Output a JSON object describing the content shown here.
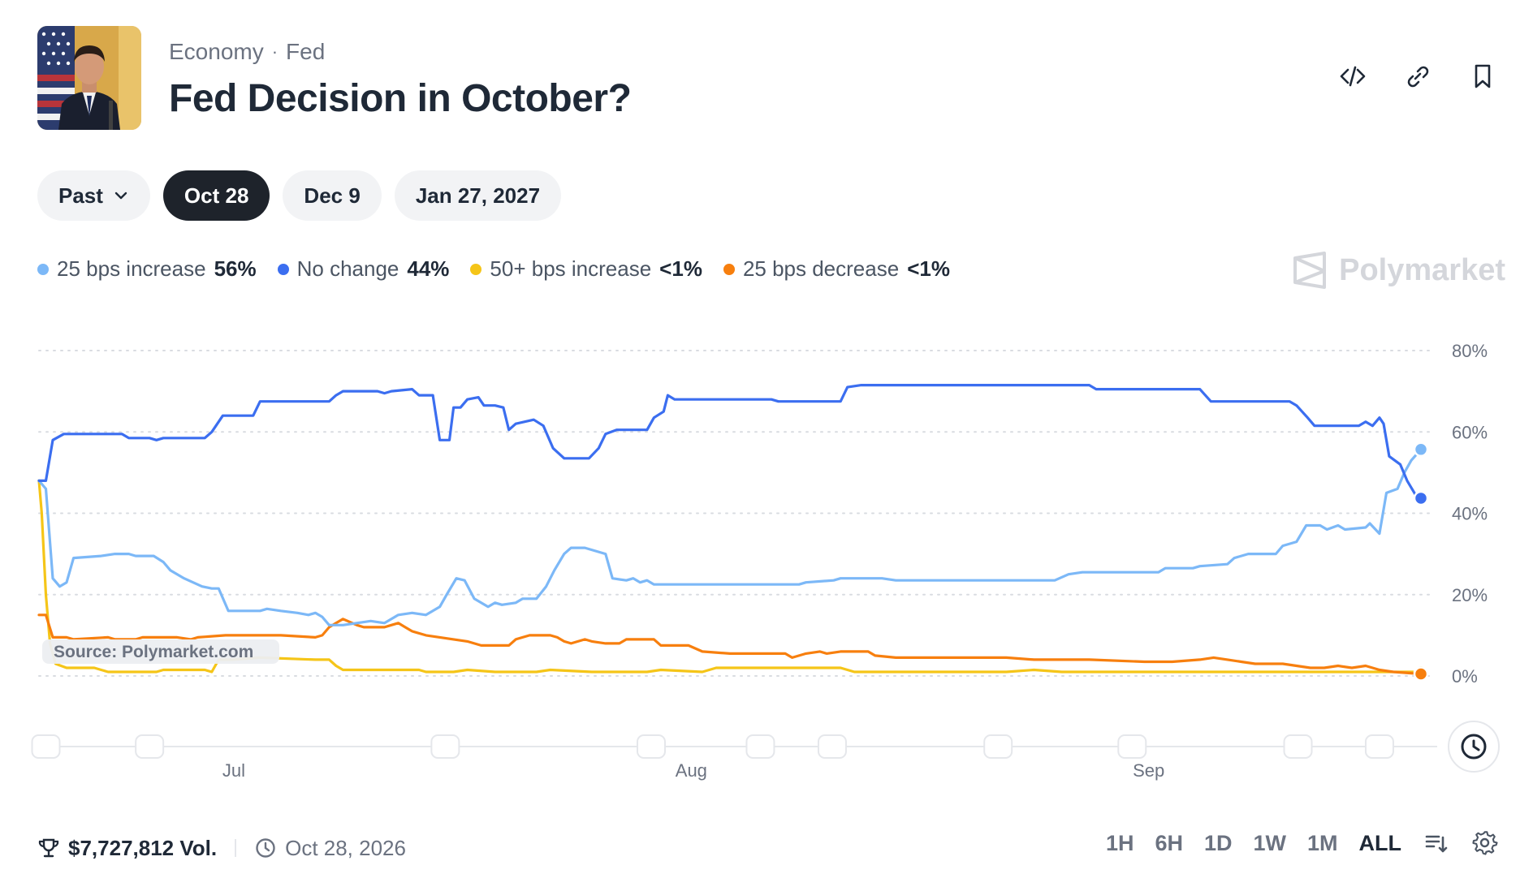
{
  "header": {
    "breadcrumbs": [
      "Economy",
      "Fed"
    ],
    "title": "Fed Decision in October?"
  },
  "tabs": {
    "past_label": "Past",
    "dates": [
      "Oct 28",
      "Dec 9",
      "Jan 27, 2027"
    ],
    "active": "Oct 28"
  },
  "legend": [
    {
      "name": "25 bps increase",
      "value": "56%",
      "color": "#7cb8f7"
    },
    {
      "name": "No change",
      "value": "44%",
      "color": "#3b6ef0"
    },
    {
      "name": "50+ bps increase",
      "value": "<1%",
      "color": "#f5c518"
    },
    {
      "name": "25 bps decrease",
      "value": "<1%",
      "color": "#f77f0e"
    }
  ],
  "brand": "Polymarket",
  "source_label": "Source: Polymarket.com",
  "footer": {
    "volume": "$7,727,812 Vol.",
    "date": "Oct 28, 2026",
    "ranges": [
      "1H",
      "6H",
      "1D",
      "1W",
      "1M",
      "ALL"
    ],
    "active_range": "ALL"
  },
  "colors": {
    "accent_dark": "#1e232b",
    "gridline": "#d9dce1"
  },
  "icons": [
    "code-icon",
    "link-icon",
    "bookmark-icon",
    "chevron-down-icon",
    "polymarket-logo-icon",
    "clock-icon",
    "trophy-icon",
    "sort-icon",
    "settings-icon"
  ],
  "chart_data": {
    "type": "line",
    "y_ticks": [
      "80%",
      "60%",
      "40%",
      "20%",
      "0%"
    ],
    "ylim": [
      0,
      80
    ],
    "x_ticks": [
      {
        "label": "Jul",
        "t": 0.141
      },
      {
        "label": "Aug",
        "t": 0.472
      },
      {
        "label": "Sep",
        "t": 0.803
      }
    ],
    "grid": true,
    "series": [
      {
        "name": "No change",
        "color": "#3b6ef0",
        "points": [
          [
            0,
            48
          ],
          [
            0.005,
            48
          ],
          [
            0.01,
            58
          ],
          [
            0.018,
            59.5
          ],
          [
            0.06,
            59.5
          ],
          [
            0.065,
            58.5
          ],
          [
            0.08,
            58.5
          ],
          [
            0.085,
            58
          ],
          [
            0.09,
            58.5
          ],
          [
            0.12,
            58.5
          ],
          [
            0.125,
            60
          ],
          [
            0.133,
            64
          ],
          [
            0.155,
            64
          ],
          [
            0.16,
            67.5
          ],
          [
            0.21,
            67.5
          ],
          [
            0.215,
            69
          ],
          [
            0.22,
            70
          ],
          [
            0.245,
            70
          ],
          [
            0.25,
            69.5
          ],
          [
            0.255,
            70
          ],
          [
            0.27,
            70.5
          ],
          [
            0.275,
            69
          ],
          [
            0.285,
            69
          ],
          [
            0.29,
            58
          ],
          [
            0.297,
            58
          ],
          [
            0.3,
            66
          ],
          [
            0.305,
            66
          ],
          [
            0.31,
            68
          ],
          [
            0.318,
            68.5
          ],
          [
            0.322,
            66.5
          ],
          [
            0.33,
            66.5
          ],
          [
            0.336,
            66
          ],
          [
            0.34,
            60.5
          ],
          [
            0.345,
            62
          ],
          [
            0.358,
            63
          ],
          [
            0.365,
            61.5
          ],
          [
            0.372,
            56
          ],
          [
            0.38,
            53.5
          ],
          [
            0.398,
            53.5
          ],
          [
            0.405,
            56
          ],
          [
            0.41,
            59.5
          ],
          [
            0.418,
            60.5
          ],
          [
            0.44,
            60.5
          ],
          [
            0.445,
            63.5
          ],
          [
            0.452,
            65
          ],
          [
            0.455,
            69
          ],
          [
            0.46,
            68
          ],
          [
            0.53,
            68
          ],
          [
            0.535,
            67.5
          ],
          [
            0.58,
            67.5
          ],
          [
            0.585,
            71
          ],
          [
            0.595,
            71.5
          ],
          [
            0.76,
            71.5
          ],
          [
            0.765,
            70.5
          ],
          [
            0.84,
            70.5
          ],
          [
            0.848,
            67.5
          ],
          [
            0.905,
            67.5
          ],
          [
            0.91,
            66.5
          ],
          [
            0.918,
            63.5
          ],
          [
            0.923,
            61.5
          ],
          [
            0.955,
            61.5
          ],
          [
            0.96,
            62.5
          ],
          [
            0.965,
            61.5
          ],
          [
            0.97,
            63.5
          ],
          [
            0.973,
            62
          ],
          [
            0.977,
            54
          ],
          [
            0.985,
            52
          ],
          [
            0.99,
            48
          ],
          [
            0.997,
            44
          ],
          [
            1.0,
            43.7
          ]
        ]
      },
      {
        "name": "25 bps increase",
        "color": "#7cb8f7",
        "points": [
          [
            0,
            48
          ],
          [
            0.005,
            46
          ],
          [
            0.01,
            24
          ],
          [
            0.015,
            22
          ],
          [
            0.02,
            23
          ],
          [
            0.025,
            29
          ],
          [
            0.045,
            29.5
          ],
          [
            0.055,
            30
          ],
          [
            0.065,
            30
          ],
          [
            0.07,
            29.5
          ],
          [
            0.083,
            29.5
          ],
          [
            0.09,
            28
          ],
          [
            0.095,
            26
          ],
          [
            0.105,
            24
          ],
          [
            0.118,
            22
          ],
          [
            0.125,
            21.5
          ],
          [
            0.13,
            21.5
          ],
          [
            0.137,
            16
          ],
          [
            0.16,
            16
          ],
          [
            0.165,
            16.5
          ],
          [
            0.175,
            16
          ],
          [
            0.187,
            15.5
          ],
          [
            0.195,
            15
          ],
          [
            0.2,
            15.5
          ],
          [
            0.205,
            14.5
          ],
          [
            0.21,
            12.5
          ],
          [
            0.22,
            12.5
          ],
          [
            0.23,
            13
          ],
          [
            0.24,
            13.5
          ],
          [
            0.25,
            13
          ],
          [
            0.255,
            14
          ],
          [
            0.26,
            15
          ],
          [
            0.27,
            15.5
          ],
          [
            0.28,
            15
          ],
          [
            0.285,
            16
          ],
          [
            0.29,
            17
          ],
          [
            0.295,
            20
          ],
          [
            0.302,
            24
          ],
          [
            0.308,
            23.5
          ],
          [
            0.315,
            19
          ],
          [
            0.32,
            18
          ],
          [
            0.325,
            17
          ],
          [
            0.33,
            18
          ],
          [
            0.335,
            17.5
          ],
          [
            0.345,
            18
          ],
          [
            0.35,
            19
          ],
          [
            0.36,
            19
          ],
          [
            0.367,
            22
          ],
          [
            0.373,
            26
          ],
          [
            0.38,
            30
          ],
          [
            0.385,
            31.5
          ],
          [
            0.395,
            31.5
          ],
          [
            0.4,
            31
          ],
          [
            0.41,
            30
          ],
          [
            0.415,
            24
          ],
          [
            0.425,
            23.5
          ],
          [
            0.43,
            24
          ],
          [
            0.435,
            23
          ],
          [
            0.44,
            23.5
          ],
          [
            0.445,
            22.5
          ],
          [
            0.48,
            22.5
          ],
          [
            0.55,
            22.5
          ],
          [
            0.555,
            23
          ],
          [
            0.575,
            23.5
          ],
          [
            0.58,
            24
          ],
          [
            0.61,
            24
          ],
          [
            0.62,
            23.5
          ],
          [
            0.69,
            23.5
          ],
          [
            0.735,
            23.5
          ],
          [
            0.745,
            25
          ],
          [
            0.755,
            25.5
          ],
          [
            0.81,
            25.5
          ],
          [
            0.815,
            26.5
          ],
          [
            0.835,
            26.5
          ],
          [
            0.84,
            27
          ],
          [
            0.86,
            27.5
          ],
          [
            0.865,
            29
          ],
          [
            0.875,
            30
          ],
          [
            0.895,
            30
          ],
          [
            0.9,
            32
          ],
          [
            0.91,
            33
          ],
          [
            0.917,
            37
          ],
          [
            0.927,
            37
          ],
          [
            0.932,
            36
          ],
          [
            0.94,
            37
          ],
          [
            0.945,
            36
          ],
          [
            0.96,
            36.5
          ],
          [
            0.963,
            37.5
          ],
          [
            0.97,
            35
          ],
          [
            0.975,
            45
          ],
          [
            0.983,
            46
          ],
          [
            0.988,
            50
          ],
          [
            0.993,
            53
          ],
          [
            1.0,
            55.7
          ]
        ]
      },
      {
        "name": "50+ bps increase",
        "color": "#f5c518",
        "points": [
          [
            0,
            48
          ],
          [
            0.002,
            40
          ],
          [
            0.005,
            20
          ],
          [
            0.008,
            8
          ],
          [
            0.012,
            3
          ],
          [
            0.02,
            2
          ],
          [
            0.04,
            2
          ],
          [
            0.05,
            1
          ],
          [
            0.06,
            1
          ],
          [
            0.085,
            1
          ],
          [
            0.09,
            1.5
          ],
          [
            0.12,
            1.5
          ],
          [
            0.125,
            1
          ],
          [
            0.13,
            4
          ],
          [
            0.14,
            4
          ],
          [
            0.16,
            4.5
          ],
          [
            0.2,
            4
          ],
          [
            0.21,
            4
          ],
          [
            0.215,
            2.5
          ],
          [
            0.22,
            1.5
          ],
          [
            0.26,
            1.5
          ],
          [
            0.275,
            1.5
          ],
          [
            0.28,
            1
          ],
          [
            0.3,
            1
          ],
          [
            0.31,
            1.5
          ],
          [
            0.33,
            1
          ],
          [
            0.36,
            1
          ],
          [
            0.37,
            1.5
          ],
          [
            0.4,
            1
          ],
          [
            0.44,
            1
          ],
          [
            0.45,
            1.5
          ],
          [
            0.48,
            1
          ],
          [
            0.49,
            2
          ],
          [
            0.53,
            2
          ],
          [
            0.58,
            2
          ],
          [
            0.59,
            1
          ],
          [
            0.62,
            1
          ],
          [
            0.7,
            1
          ],
          [
            0.72,
            1.5
          ],
          [
            0.74,
            1
          ],
          [
            0.8,
            1
          ],
          [
            0.9,
            1
          ],
          [
            0.95,
            1
          ],
          [
            0.97,
            1
          ],
          [
            1.0,
            1
          ]
        ]
      },
      {
        "name": "25 bps decrease",
        "color": "#f77f0e",
        "points": [
          [
            0,
            15
          ],
          [
            0.005,
            15
          ],
          [
            0.01,
            9.5
          ],
          [
            0.02,
            9.5
          ],
          [
            0.025,
            9
          ],
          [
            0.05,
            9.5
          ],
          [
            0.055,
            9
          ],
          [
            0.07,
            9
          ],
          [
            0.075,
            9.5
          ],
          [
            0.1,
            9.5
          ],
          [
            0.11,
            9
          ],
          [
            0.115,
            9.5
          ],
          [
            0.135,
            10
          ],
          [
            0.16,
            10
          ],
          [
            0.175,
            10
          ],
          [
            0.2,
            9.5
          ],
          [
            0.205,
            10
          ],
          [
            0.21,
            12
          ],
          [
            0.215,
            13
          ],
          [
            0.22,
            14
          ],
          [
            0.23,
            12.5
          ],
          [
            0.235,
            12
          ],
          [
            0.25,
            12
          ],
          [
            0.255,
            12.5
          ],
          [
            0.26,
            13
          ],
          [
            0.265,
            12
          ],
          [
            0.27,
            11
          ],
          [
            0.28,
            10
          ],
          [
            0.29,
            9.5
          ],
          [
            0.3,
            9
          ],
          [
            0.31,
            8.5
          ],
          [
            0.32,
            7.5
          ],
          [
            0.34,
            7.5
          ],
          [
            0.345,
            9
          ],
          [
            0.355,
            10
          ],
          [
            0.37,
            10
          ],
          [
            0.375,
            9.5
          ],
          [
            0.38,
            8.5
          ],
          [
            0.385,
            8
          ],
          [
            0.39,
            8.5
          ],
          [
            0.395,
            9
          ],
          [
            0.4,
            8.5
          ],
          [
            0.41,
            8
          ],
          [
            0.42,
            8
          ],
          [
            0.425,
            9
          ],
          [
            0.445,
            9
          ],
          [
            0.45,
            7.5
          ],
          [
            0.47,
            7.5
          ],
          [
            0.48,
            6
          ],
          [
            0.5,
            5.5
          ],
          [
            0.54,
            5.5
          ],
          [
            0.545,
            4.5
          ],
          [
            0.55,
            5
          ],
          [
            0.555,
            5.5
          ],
          [
            0.565,
            6
          ],
          [
            0.57,
            5.5
          ],
          [
            0.58,
            6
          ],
          [
            0.6,
            6
          ],
          [
            0.605,
            5
          ],
          [
            0.62,
            4.5
          ],
          [
            0.64,
            4.5
          ],
          [
            0.66,
            4.5
          ],
          [
            0.67,
            4.5
          ],
          [
            0.7,
            4.5
          ],
          [
            0.72,
            4
          ],
          [
            0.74,
            4
          ],
          [
            0.76,
            4
          ],
          [
            0.8,
            3.5
          ],
          [
            0.82,
            3.5
          ],
          [
            0.84,
            4
          ],
          [
            0.85,
            4.5
          ],
          [
            0.86,
            4
          ],
          [
            0.87,
            3.5
          ],
          [
            0.88,
            3
          ],
          [
            0.9,
            3
          ],
          [
            0.91,
            2.5
          ],
          [
            0.92,
            2
          ],
          [
            0.93,
            2
          ],
          [
            0.94,
            2.5
          ],
          [
            0.95,
            2
          ],
          [
            0.96,
            2.5
          ],
          [
            0.965,
            2
          ],
          [
            0.97,
            1.5
          ],
          [
            0.98,
            1
          ],
          [
            1.0,
            0.5
          ]
        ]
      }
    ]
  }
}
